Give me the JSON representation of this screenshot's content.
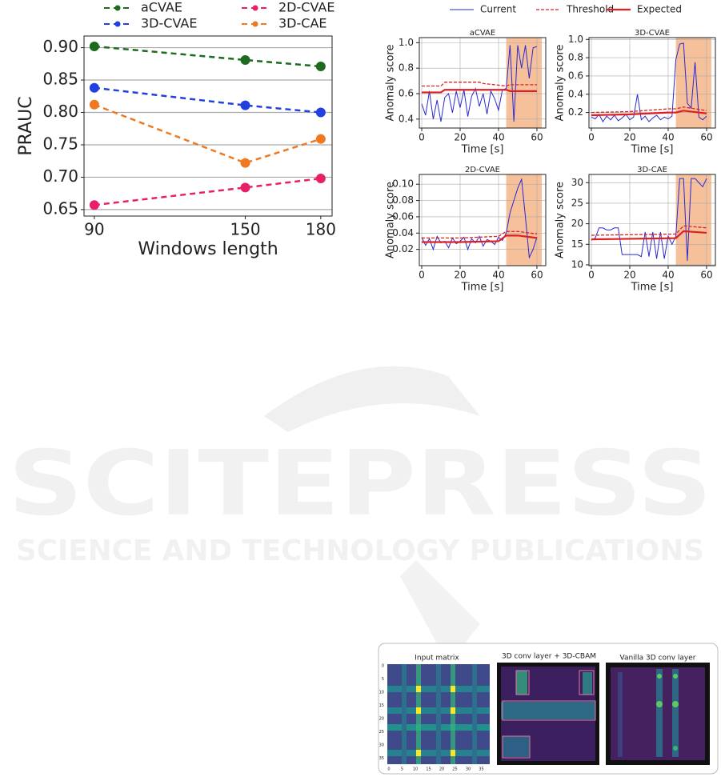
{
  "chart_data": [
    {
      "type": "line",
      "xlabel": "Windows length",
      "ylabel": "PRAUC",
      "x": [
        90,
        150,
        180
      ],
      "xlim": [
        85.9,
        184.5
      ],
      "ylim": [
        0.64,
        0.918
      ],
      "xticks": [
        90,
        150,
        180
      ],
      "yticks": [
        0.65,
        {
          "value": 0.7,
          "label": "0.70"
        },
        0.75,
        {
          "value": 0.8,
          "label": "0.80"
        },
        0.85,
        {
          "value": 0.9,
          "label": "0.90"
        }
      ],
      "grid": "y",
      "legend": "top",
      "markers": true,
      "series": [
        {
          "name": "aCVAE",
          "color": "#1d6b1d",
          "linestyle": "dashed",
          "values": [
            0.902,
            0.881,
            0.871
          ]
        },
        {
          "name": "3D-CVAE",
          "color": "#2040e0",
          "linestyle": "dashed",
          "values": [
            0.838,
            0.811,
            0.8
          ]
        },
        {
          "name": "2D-CVAE",
          "color": "#e8206a",
          "linestyle": "dashed",
          "values": [
            0.657,
            0.684,
            0.698
          ]
        },
        {
          "name": "3D-CAE",
          "color": "#f07820",
          "linestyle": "dashed",
          "values": [
            0.812,
            0.722,
            0.759
          ]
        }
      ]
    },
    {
      "type": "line",
      "title": "aCVAE",
      "xlabel": "Time [s]",
      "ylabel": "Anomaly score",
      "xlim": [
        -1.25,
        64.6
      ],
      "ylim": [
        0.33,
        1.04
      ],
      "xticks": [
        0,
        20,
        40,
        60
      ],
      "yticks": [
        0.4,
        0.6,
        0.8,
        {
          "value": 1,
          "label": "1.0"
        }
      ],
      "grid": "both",
      "legend": "top",
      "shade": [
        44,
        62.5
      ],
      "shade_color": "#f5c09a",
      "series": [
        {
          "name": "Current",
          "color": "#2a2ad0",
          "linestyle": "solid",
          "linewidth": 1,
          "x": [
            0,
            2,
            4,
            6,
            8,
            10,
            12,
            14,
            16,
            18,
            20,
            22,
            24,
            26,
            28,
            30,
            32,
            34,
            36,
            38,
            40,
            42,
            44,
            46,
            48,
            50,
            52,
            54,
            56,
            58,
            60
          ],
          "values": [
            0.52,
            0.43,
            0.62,
            0.4,
            0.55,
            0.38,
            0.57,
            0.6,
            0.45,
            0.62,
            0.49,
            0.63,
            0.42,
            0.58,
            0.64,
            0.5,
            0.6,
            0.44,
            0.62,
            0.56,
            0.47,
            0.63,
            0.64,
            0.98,
            0.38,
            0.98,
            0.8,
            0.98,
            0.72,
            0.96,
            0.97
          ]
        },
        {
          "name": "Threshold",
          "color": "#e02020",
          "linestyle": "dashed",
          "linewidth": 1.3,
          "x": [
            0,
            10,
            12,
            30,
            32,
            44,
            46,
            60
          ],
          "values": [
            0.66,
            0.66,
            0.69,
            0.69,
            0.68,
            0.66,
            0.67,
            0.67
          ]
        },
        {
          "name": "Expected",
          "color": "#e02020",
          "linestyle": "solid",
          "linewidth": 2.2,
          "x": [
            0,
            10,
            12,
            44,
            46,
            60
          ],
          "values": [
            0.61,
            0.61,
            0.63,
            0.63,
            0.62,
            0.62
          ]
        }
      ]
    },
    {
      "type": "line",
      "title": "3D-CVAE",
      "xlabel": "Time [s]",
      "ylabel": "Anomaly score",
      "xlim": [
        -1.25,
        64.6
      ],
      "ylim": [
        0.03,
        1.02
      ],
      "xticks": [
        0,
        20,
        40,
        60
      ],
      "yticks": [
        0.2,
        0.4,
        0.6,
        0.8,
        {
          "value": 1,
          "label": "1.0"
        }
      ],
      "grid": "both",
      "shade": [
        44,
        62.5
      ],
      "shade_color": "#f5c09a",
      "series": [
        {
          "color": "#2a2ad0",
          "linestyle": "solid",
          "linewidth": 1,
          "x": [
            0,
            2,
            4,
            6,
            8,
            10,
            12,
            14,
            16,
            18,
            20,
            22,
            24,
            26,
            28,
            30,
            32,
            34,
            36,
            38,
            40,
            42,
            44,
            46,
            48,
            50,
            52,
            54,
            56,
            58,
            60
          ],
          "values": [
            0.15,
            0.13,
            0.18,
            0.1,
            0.16,
            0.12,
            0.17,
            0.11,
            0.14,
            0.18,
            0.12,
            0.15,
            0.4,
            0.12,
            0.16,
            0.1,
            0.14,
            0.17,
            0.12,
            0.15,
            0.13,
            0.16,
            0.78,
            0.95,
            0.96,
            0.3,
            0.25,
            0.75,
            0.15,
            0.12,
            0.16
          ]
        },
        {
          "color": "#e02020",
          "linestyle": "dashed",
          "linewidth": 1.3,
          "x": [
            0,
            20,
            40,
            44,
            48,
            60
          ],
          "values": [
            0.2,
            0.21,
            0.24,
            0.24,
            0.26,
            0.22
          ]
        },
        {
          "color": "#e02020",
          "linestyle": "solid",
          "linewidth": 2.2,
          "x": [
            0,
            20,
            40,
            44,
            48,
            60
          ],
          "values": [
            0.17,
            0.18,
            0.2,
            0.2,
            0.22,
            0.19
          ]
        }
      ]
    },
    {
      "type": "line",
      "title": "2D-CVAE",
      "xlabel": "Time [s]",
      "ylabel": "Anomaly score",
      "xlim": [
        -1.25,
        64.6
      ],
      "ylim": [
        0,
        0.112
      ],
      "xticks": [
        0,
        20,
        40,
        60
      ],
      "yticks": [
        0.02,
        0.04,
        0.06,
        0.08,
        {
          "value": 0.1,
          "label": "0.10"
        }
      ],
      "grid": "both",
      "shade": [
        44,
        62.5
      ],
      "shade_color": "#f5c09a",
      "series": [
        {
          "color": "#2a2ad0",
          "linestyle": "solid",
          "linewidth": 1,
          "x": [
            0,
            2,
            4,
            6,
            8,
            10,
            12,
            14,
            16,
            18,
            20,
            22,
            24,
            26,
            28,
            30,
            32,
            34,
            36,
            38,
            40,
            42,
            44,
            46,
            48,
            50,
            52,
            54,
            56,
            58,
            60
          ],
          "values": [
            0.035,
            0.025,
            0.033,
            0.02,
            0.036,
            0.028,
            0.03,
            0.022,
            0.034,
            0.027,
            0.03,
            0.035,
            0.02,
            0.033,
            0.028,
            0.036,
            0.024,
            0.032,
            0.03,
            0.026,
            0.035,
            0.031,
            0.04,
            0.065,
            0.08,
            0.095,
            0.106,
            0.06,
            0.01,
            0.02,
            0.035
          ]
        },
        {
          "color": "#e02020",
          "linestyle": "dashed",
          "linewidth": 1.3,
          "x": [
            0,
            20,
            40,
            44,
            50,
            60
          ],
          "values": [
            0.034,
            0.034,
            0.036,
            0.042,
            0.042,
            0.039
          ]
        },
        {
          "color": "#e02020",
          "linestyle": "solid",
          "linewidth": 2.2,
          "x": [
            0,
            20,
            40,
            44,
            50,
            60
          ],
          "values": [
            0.029,
            0.029,
            0.03,
            0.037,
            0.037,
            0.034
          ]
        }
      ]
    },
    {
      "type": "line",
      "title": "3D-CAE",
      "xlabel": "Time [s]",
      "ylabel": "Anomaly score",
      "xlim": [
        -1.25,
        64.6
      ],
      "ylim": [
        9.8,
        32
      ],
      "xticks": [
        0,
        20,
        40,
        60
      ],
      "yticks": [
        10,
        15,
        20,
        25,
        30
      ],
      "grid": "both",
      "shade": [
        44,
        62.5
      ],
      "shade_color": "#f5c09a",
      "series": [
        {
          "color": "#2a2ad0",
          "linestyle": "solid",
          "linewidth": 1,
          "x": [
            0,
            2,
            4,
            6,
            8,
            10,
            12,
            14,
            16,
            18,
            20,
            22,
            24,
            26,
            28,
            30,
            32,
            34,
            36,
            38,
            40,
            42,
            44,
            46,
            48,
            50,
            52,
            54,
            56,
            58,
            60
          ],
          "values": [
            16,
            16.5,
            19,
            19,
            18.5,
            18.5,
            19,
            19,
            12.5,
            12.5,
            12.5,
            12.5,
            12.5,
            12,
            18,
            12,
            18,
            11.5,
            18,
            11.5,
            17,
            15,
            17,
            31,
            31,
            11,
            31,
            31,
            30,
            29,
            31
          ]
        },
        {
          "color": "#e02020",
          "linestyle": "dashed",
          "linewidth": 1.3,
          "x": [
            0,
            44,
            48,
            60
          ],
          "values": [
            17.2,
            17.5,
            19.5,
            19
          ]
        },
        {
          "color": "#e02020",
          "linestyle": "solid",
          "linewidth": 2.2,
          "x": [
            0,
            44,
            48,
            60
          ],
          "values": [
            16.2,
            16.5,
            18.2,
            17.8
          ]
        }
      ]
    }
  ],
  "watermark": {
    "title": "SCITEPRESS",
    "subtitle": "SCIENCE AND TECHNOLOGY PUBLICATIONS"
  },
  "figure": {
    "panels": [
      "Input matrix",
      "3D conv layer + 3D-CBAM",
      "Vanilla 3D conv layer"
    ],
    "ticks": [
      0,
      5,
      10,
      15,
      20,
      25,
      30,
      35
    ]
  }
}
